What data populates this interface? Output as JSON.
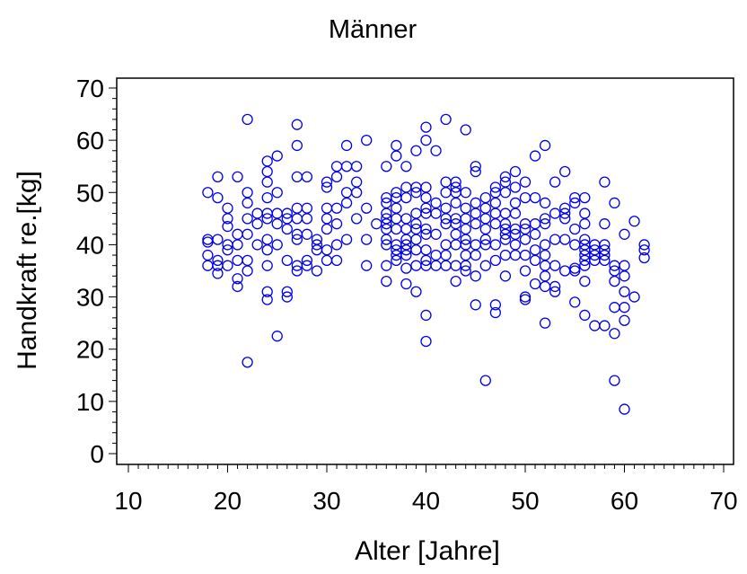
{
  "chart_data": {
    "type": "scatter",
    "title": "Männer",
    "xlabel": "Alter [Jahre]",
    "ylabel": "Handkraft re.[kg]",
    "xlim": [
      10,
      70
    ],
    "ylim": [
      0,
      70
    ],
    "x_ticks": [
      10,
      20,
      30,
      40,
      50,
      60,
      70
    ],
    "y_ticks": [
      0,
      10,
      20,
      30,
      40,
      50,
      60,
      70
    ],
    "x_minor_step": 1,
    "y_minor_step": 2,
    "grid": false,
    "marker": "open-circle",
    "marker_color": "#0000ee",
    "points": [
      [
        18,
        50
      ],
      [
        18,
        41
      ],
      [
        18,
        40.5
      ],
      [
        18,
        38
      ],
      [
        18,
        36
      ],
      [
        19,
        53
      ],
      [
        19,
        49
      ],
      [
        19,
        41
      ],
      [
        19,
        37
      ],
      [
        19,
        36
      ],
      [
        19,
        34.5
      ],
      [
        20,
        47
      ],
      [
        20,
        45
      ],
      [
        20,
        43.5
      ],
      [
        20,
        40
      ],
      [
        20,
        39
      ],
      [
        20,
        36
      ],
      [
        21,
        53
      ],
      [
        21,
        42
      ],
      [
        21,
        40
      ],
      [
        21,
        37
      ],
      [
        21,
        33.5
      ],
      [
        21,
        32
      ],
      [
        22,
        64
      ],
      [
        22,
        50
      ],
      [
        22,
        48
      ],
      [
        22,
        45
      ],
      [
        22,
        42
      ],
      [
        22,
        37
      ],
      [
        22,
        35
      ],
      [
        22,
        17.5
      ],
      [
        23,
        46
      ],
      [
        23,
        44
      ],
      [
        23,
        40
      ],
      [
        24,
        56
      ],
      [
        24,
        54
      ],
      [
        24,
        52
      ],
      [
        24,
        49
      ],
      [
        24,
        46
      ],
      [
        24,
        45
      ],
      [
        24,
        41
      ],
      [
        24,
        39
      ],
      [
        24,
        36
      ],
      [
        24,
        31
      ],
      [
        24,
        29.5
      ],
      [
        25,
        57
      ],
      [
        25,
        50
      ],
      [
        25,
        46
      ],
      [
        25,
        44
      ],
      [
        25,
        40
      ],
      [
        25,
        22.5
      ],
      [
        26,
        46
      ],
      [
        26,
        45
      ],
      [
        26,
        43
      ],
      [
        26,
        37
      ],
      [
        26,
        31
      ],
      [
        26,
        30
      ],
      [
        27,
        63
      ],
      [
        27,
        59
      ],
      [
        27,
        53
      ],
      [
        27,
        47
      ],
      [
        27,
        45
      ],
      [
        27,
        42
      ],
      [
        27,
        41
      ],
      [
        27,
        36
      ],
      [
        27,
        35
      ],
      [
        28,
        53
      ],
      [
        28,
        47
      ],
      [
        28,
        45
      ],
      [
        28,
        42
      ],
      [
        28,
        37
      ],
      [
        28,
        36
      ],
      [
        29,
        41
      ],
      [
        29,
        40
      ],
      [
        29,
        39
      ],
      [
        29,
        35
      ],
      [
        30,
        52
      ],
      [
        30,
        51
      ],
      [
        30,
        47
      ],
      [
        30,
        45
      ],
      [
        30,
        43
      ],
      [
        30,
        39
      ],
      [
        30,
        37
      ],
      [
        31,
        55
      ],
      [
        31,
        53
      ],
      [
        31,
        47
      ],
      [
        31,
        44
      ],
      [
        31,
        40
      ],
      [
        31,
        37
      ],
      [
        32,
        59
      ],
      [
        32,
        55
      ],
      [
        32,
        50
      ],
      [
        32,
        48
      ],
      [
        32,
        41
      ],
      [
        33,
        55
      ],
      [
        33,
        52
      ],
      [
        33,
        50
      ],
      [
        33,
        45
      ],
      [
        34,
        60
      ],
      [
        34,
        47
      ],
      [
        34,
        41
      ],
      [
        34,
        36
      ],
      [
        35,
        44
      ],
      [
        36,
        55
      ],
      [
        36,
        49
      ],
      [
        36,
        48
      ],
      [
        36,
        46
      ],
      [
        36,
        45
      ],
      [
        36,
        44
      ],
      [
        36,
        43
      ],
      [
        36,
        41
      ],
      [
        36,
        40
      ],
      [
        36,
        36
      ],
      [
        36,
        33
      ],
      [
        37,
        59
      ],
      [
        37,
        57
      ],
      [
        37,
        50
      ],
      [
        37,
        49
      ],
      [
        37,
        47
      ],
      [
        37,
        45
      ],
      [
        37,
        43
      ],
      [
        37,
        40
      ],
      [
        37,
        39
      ],
      [
        37,
        38
      ],
      [
        37,
        37
      ],
      [
        38,
        55
      ],
      [
        38,
        51
      ],
      [
        38,
        49
      ],
      [
        38,
        45
      ],
      [
        38,
        43
      ],
      [
        38,
        41
      ],
      [
        38,
        40
      ],
      [
        38,
        39
      ],
      [
        38,
        38
      ],
      [
        38,
        35.5
      ],
      [
        38,
        32.5
      ],
      [
        39,
        58
      ],
      [
        39,
        51
      ],
      [
        39,
        50
      ],
      [
        39,
        46
      ],
      [
        39,
        44
      ],
      [
        39,
        43
      ],
      [
        39,
        41
      ],
      [
        39,
        39
      ],
      [
        39,
        36
      ],
      [
        39,
        31
      ],
      [
        40,
        62.5
      ],
      [
        40,
        60
      ],
      [
        40,
        51
      ],
      [
        40,
        49
      ],
      [
        40,
        47
      ],
      [
        40,
        46
      ],
      [
        40,
        43
      ],
      [
        40,
        42
      ],
      [
        40,
        39
      ],
      [
        40,
        37
      ],
      [
        40,
        36
      ],
      [
        40,
        26.5
      ],
      [
        40,
        21.5
      ],
      [
        41,
        58
      ],
      [
        41,
        48
      ],
      [
        41,
        46
      ],
      [
        41,
        42
      ],
      [
        41,
        38
      ],
      [
        41,
        36
      ],
      [
        42,
        64
      ],
      [
        42,
        52
      ],
      [
        42,
        50
      ],
      [
        42,
        47
      ],
      [
        42,
        45
      ],
      [
        42,
        44
      ],
      [
        42,
        40
      ],
      [
        42,
        38
      ],
      [
        42,
        36
      ],
      [
        43,
        52
      ],
      [
        43,
        51
      ],
      [
        43,
        50
      ],
      [
        43,
        48
      ],
      [
        43,
        45
      ],
      [
        43,
        44
      ],
      [
        43,
        42
      ],
      [
        43,
        40
      ],
      [
        43,
        36
      ],
      [
        43,
        33
      ],
      [
        44,
        62
      ],
      [
        44,
        50
      ],
      [
        44,
        47
      ],
      [
        44,
        45
      ],
      [
        44,
        43
      ],
      [
        44,
        41
      ],
      [
        44,
        40
      ],
      [
        44,
        38
      ],
      [
        44,
        36
      ],
      [
        44,
        35
      ],
      [
        45,
        55
      ],
      [
        45,
        54
      ],
      [
        45,
        48
      ],
      [
        45,
        46
      ],
      [
        45,
        44
      ],
      [
        45,
        40
      ],
      [
        45,
        38
      ],
      [
        45,
        34
      ],
      [
        45,
        28.5
      ],
      [
        46,
        49
      ],
      [
        46,
        47
      ],
      [
        46,
        45
      ],
      [
        46,
        43
      ],
      [
        46,
        41
      ],
      [
        46,
        40
      ],
      [
        46,
        36
      ],
      [
        46,
        14
      ],
      [
        47,
        51
      ],
      [
        47,
        50
      ],
      [
        47,
        48
      ],
      [
        47,
        46
      ],
      [
        47,
        44
      ],
      [
        47,
        40
      ],
      [
        47,
        37
      ],
      [
        47,
        28.5
      ],
      [
        47,
        27
      ],
      [
        48,
        53
      ],
      [
        48,
        52
      ],
      [
        48,
        50
      ],
      [
        48,
        46
      ],
      [
        48,
        44
      ],
      [
        48,
        43
      ],
      [
        48,
        42
      ],
      [
        48,
        41
      ],
      [
        48,
        38
      ],
      [
        48,
        34
      ],
      [
        49,
        54
      ],
      [
        49,
        51
      ],
      [
        49,
        48
      ],
      [
        49,
        46
      ],
      [
        49,
        43
      ],
      [
        49,
        42
      ],
      [
        49,
        40
      ],
      [
        49,
        38
      ],
      [
        50,
        52
      ],
      [
        50,
        49
      ],
      [
        50,
        44
      ],
      [
        50,
        43
      ],
      [
        50,
        41
      ],
      [
        50,
        38
      ],
      [
        50,
        35
      ],
      [
        50,
        30
      ],
      [
        50,
        29.5
      ],
      [
        51,
        57
      ],
      [
        51,
        49
      ],
      [
        51,
        44
      ],
      [
        51,
        42
      ],
      [
        51,
        39
      ],
      [
        51,
        37
      ],
      [
        51,
        32.5
      ],
      [
        52,
        59
      ],
      [
        52,
        48
      ],
      [
        52,
        45
      ],
      [
        52,
        44
      ],
      [
        52,
        40
      ],
      [
        52,
        38
      ],
      [
        52,
        36
      ],
      [
        52,
        34
      ],
      [
        52,
        32
      ],
      [
        52,
        25
      ],
      [
        53,
        52
      ],
      [
        53,
        46
      ],
      [
        53,
        41
      ],
      [
        53,
        36
      ],
      [
        53,
        32
      ],
      [
        53,
        31
      ],
      [
        54,
        54
      ],
      [
        54,
        47
      ],
      [
        54,
        46
      ],
      [
        54,
        45
      ],
      [
        54,
        41
      ],
      [
        54,
        35
      ],
      [
        55,
        49
      ],
      [
        55,
        48
      ],
      [
        55,
        43
      ],
      [
        55,
        40
      ],
      [
        55,
        35.5
      ],
      [
        55,
        35
      ],
      [
        55,
        29
      ],
      [
        56,
        49
      ],
      [
        56,
        46
      ],
      [
        56,
        44
      ],
      [
        56,
        41
      ],
      [
        56,
        40
      ],
      [
        56,
        39
      ],
      [
        56,
        38
      ],
      [
        56,
        37
      ],
      [
        56,
        36
      ],
      [
        56,
        33
      ],
      [
        56,
        26.5
      ],
      [
        57,
        40
      ],
      [
        57,
        39
      ],
      [
        57,
        38
      ],
      [
        57,
        37
      ],
      [
        57,
        24.5
      ],
      [
        58,
        52
      ],
      [
        58,
        44
      ],
      [
        58,
        40
      ],
      [
        58,
        39
      ],
      [
        58,
        38
      ],
      [
        58,
        37
      ],
      [
        58,
        24.5
      ],
      [
        59,
        48
      ],
      [
        59,
        36
      ],
      [
        59,
        35
      ],
      [
        59,
        33
      ],
      [
        59,
        28
      ],
      [
        59,
        23
      ],
      [
        59,
        14
      ],
      [
        60,
        42
      ],
      [
        60,
        36
      ],
      [
        60,
        34
      ],
      [
        60,
        31
      ],
      [
        60,
        28
      ],
      [
        60,
        25.5
      ],
      [
        60,
        8.5
      ],
      [
        61,
        44.5
      ],
      [
        61,
        30
      ],
      [
        62,
        40
      ],
      [
        62,
        39
      ],
      [
        62,
        37.5
      ]
    ]
  }
}
